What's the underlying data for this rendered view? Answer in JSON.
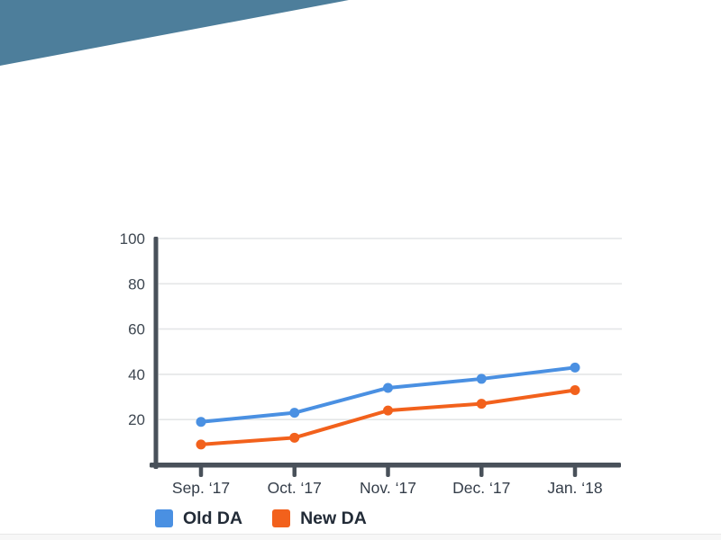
{
  "page": {
    "background": "#ffffff",
    "banner_color": "#4D7E9B",
    "footer_strip_color": "#f7f7f7",
    "footer_strip_border": "#e8e8e8"
  },
  "chart_data": {
    "type": "line",
    "categories": [
      "Sep. ‘17",
      "Oct. ‘17",
      "Nov. ‘17",
      "Dec. ‘17",
      "Jan. ‘18"
    ],
    "series": [
      {
        "name": "Old DA",
        "color": "#4A90E2",
        "values": [
          19,
          23,
          34,
          38,
          43
        ]
      },
      {
        "name": "New DA",
        "color": "#F2611C",
        "values": [
          9,
          12,
          24,
          27,
          33
        ]
      }
    ],
    "title": "",
    "xlabel": "",
    "ylabel": "",
    "ylim": [
      0,
      100
    ],
    "yticks": [
      20,
      40,
      60,
      80,
      100
    ],
    "grid": true,
    "legend_position": "bottom-left",
    "axis_color": "#49515A",
    "gridline_color": "#E4E6E7",
    "ytick_label_color": "#3E4751",
    "xtick_label_color": "#343D49",
    "marker": "circle",
    "line_width": 4
  },
  "legend": {
    "items": [
      {
        "label": "Old DA",
        "color": "#4A90E2"
      },
      {
        "label": "New DA",
        "color": "#F2611C"
      }
    ]
  }
}
